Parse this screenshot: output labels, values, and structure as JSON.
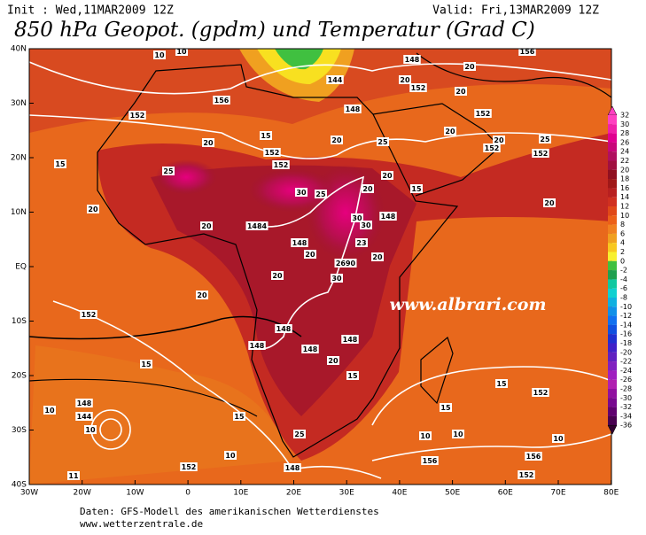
{
  "header": {
    "init": "Init : Wed,11MAR2009 12Z",
    "valid": "Valid: Fri,13MAR2009 12Z",
    "title": "850 hPa Geopot. (gpdm) und Temperatur (Grad C)"
  },
  "map": {
    "lat_labels": [
      "40N",
      "30N",
      "20N",
      "10N",
      "EQ",
      "10S",
      "20S",
      "30S",
      "40S"
    ],
    "lon_labels": [
      "30W",
      "20W",
      "10W",
      "0",
      "10E",
      "20E",
      "30E",
      "40E",
      "50E",
      "60E",
      "70E",
      "80E"
    ],
    "watermark": "www.albrari.com",
    "contour_labels": [
      "10",
      "10",
      "144",
      "148",
      "20",
      "156",
      "152",
      "156",
      "148",
      "20",
      "152",
      "20",
      "152",
      "20",
      "20",
      "152",
      "25",
      "152",
      "15",
      "25",
      "15",
      "152",
      "152",
      "20",
      "25",
      "20",
      "20",
      "30",
      "25",
      "20",
      "15",
      "20",
      "20",
      "1484",
      "148",
      "30",
      "30",
      "148",
      "20",
      "23",
      "20",
      "2690",
      "20",
      "20",
      "30",
      "20",
      "152",
      "148",
      "148",
      "148",
      "148",
      "20",
      "15",
      "15",
      "152",
      "15",
      "15",
      "10",
      "156",
      "10",
      "156",
      "10",
      "152",
      "148",
      "144",
      "10",
      "10",
      "15",
      "25",
      "10",
      "152",
      "148",
      "11"
    ]
  },
  "colorbar": {
    "labels": [
      "32",
      "30",
      "28",
      "26",
      "24",
      "22",
      "20",
      "18",
      "16",
      "14",
      "12",
      "10",
      "8",
      "6",
      "4",
      "2",
      "0",
      "-2",
      "-4",
      "-6",
      "-8",
      "-10",
      "-12",
      "-14",
      "-16",
      "-18",
      "-20",
      "-22",
      "-24",
      "-26",
      "-28",
      "-30",
      "-32",
      "-34",
      "-36"
    ]
  },
  "footer": {
    "source": "Daten: GFS-Modell des amerikanischen Wetterdienstes",
    "url": "www.wetterzentrale.de"
  }
}
